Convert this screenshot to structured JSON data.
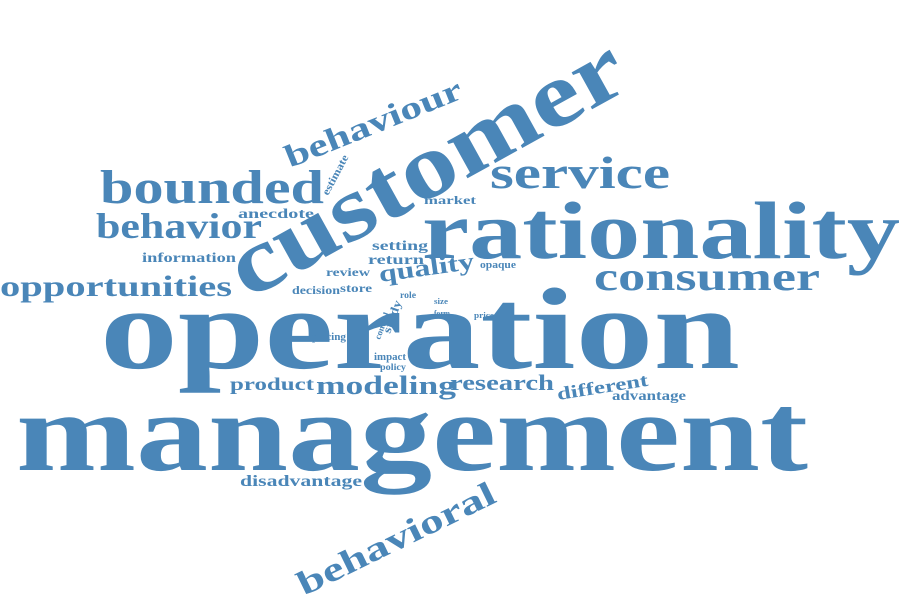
{
  "colors": {
    "text": "#4a86b8",
    "background": "#ffffff"
  },
  "words": [
    {
      "key": "management",
      "text": "management"
    },
    {
      "key": "operation",
      "text": "operation"
    },
    {
      "key": "customer",
      "text": "customer"
    },
    {
      "key": "rationality",
      "text": "rationality"
    },
    {
      "key": "bounded",
      "text": "bounded"
    },
    {
      "key": "service",
      "text": "service"
    },
    {
      "key": "consumer",
      "text": "consumer"
    },
    {
      "key": "behaviour",
      "text": "behaviour"
    },
    {
      "key": "behavior",
      "text": "behavior"
    },
    {
      "key": "behavioral",
      "text": "behavioral"
    },
    {
      "key": "opportunities",
      "text": "opportunities"
    },
    {
      "key": "modeling",
      "text": "modeling"
    },
    {
      "key": "research",
      "text": "research"
    },
    {
      "key": "product",
      "text": "product"
    },
    {
      "key": "different",
      "text": "different"
    },
    {
      "key": "advantage",
      "text": "advantage"
    },
    {
      "key": "disadvantage",
      "text": "disadvantage"
    },
    {
      "key": "quality",
      "text": "quality"
    },
    {
      "key": "information",
      "text": "information"
    },
    {
      "key": "anecdote",
      "text": "anecdote"
    },
    {
      "key": "market",
      "text": "market"
    },
    {
      "key": "setting",
      "text": "setting"
    },
    {
      "key": "return",
      "text": "return"
    },
    {
      "key": "review",
      "text": "review"
    },
    {
      "key": "decision",
      "text": "decision"
    },
    {
      "key": "store",
      "text": "store"
    },
    {
      "key": "estimate",
      "text": "estimate"
    },
    {
      "key": "opaque",
      "text": "opaque"
    },
    {
      "key": "pricing",
      "text": "pricing"
    },
    {
      "key": "role",
      "text": "role"
    },
    {
      "key": "size",
      "text": "size"
    },
    {
      "key": "form",
      "text": "form"
    },
    {
      "key": "price",
      "text": "price"
    },
    {
      "key": "study",
      "text": "study"
    },
    {
      "key": "control",
      "text": "control"
    },
    {
      "key": "impact",
      "text": "impact"
    },
    {
      "key": "policy",
      "text": "policy"
    }
  ]
}
